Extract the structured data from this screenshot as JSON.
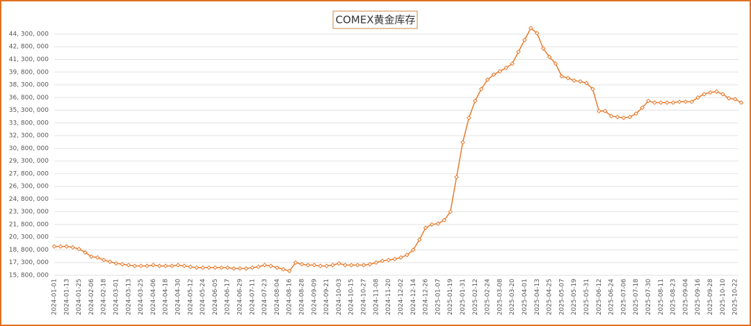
{
  "chart_data": {
    "type": "line",
    "title": "COMEX黄金库存",
    "categories": [
      "2024-01-01",
      null,
      "2024-01-13",
      null,
      "2024-01-25",
      null,
      "2024-02-06",
      null,
      "2024-02-18",
      null,
      "2024-03-01",
      null,
      "2024-03-13",
      null,
      "2024-03-25",
      null,
      "2024-04-06",
      null,
      "2024-04-18",
      null,
      "2024-04-30",
      null,
      "2024-05-12",
      null,
      "2024-05-24",
      null,
      "2024-06-05",
      null,
      "2024-06-17",
      null,
      "2024-06-29",
      null,
      "2024-07-11",
      null,
      "2024-07-23",
      null,
      "2024-08-04",
      null,
      "2024-08-16",
      null,
      "2024-08-28",
      null,
      "2024-09-09",
      null,
      "2024-09-21",
      null,
      "2024-10-03",
      null,
      "2024-10-15",
      null,
      "2024-10-27",
      null,
      "2024-11-08",
      null,
      "2024-11-20",
      null,
      "2024-12-02",
      null,
      "2024-12-14",
      null,
      "2024-12-26",
      null,
      "2025-01-07",
      null,
      "2025-01-19",
      null,
      "2025-01-31",
      null,
      "2025-02-12",
      null,
      "2025-02-24",
      null,
      "2025-03-08",
      null,
      "2025-03-20",
      null,
      "2025-04-01",
      null,
      "2025-04-13",
      null,
      "2025-04-25",
      null,
      "2025-05-07",
      null,
      "2025-05-19",
      null,
      "2025-05-31",
      null,
      "2025-06-12",
      null,
      "2025-06-24",
      null,
      "2025-07-06",
      null,
      "2025-07-18",
      null,
      "2025-07-30",
      null,
      "2025-08-11",
      null,
      "2025-08-23",
      null,
      "2025-09-04",
      null,
      "2025-09-16",
      null,
      "2025-09-28",
      null,
      "2025-10-10",
      null,
      "2025-10-22",
      null
    ],
    "series": [
      {
        "name": "COMEX黄金库存",
        "color": "#e8792a",
        "values": [
          19200000,
          19200000,
          19200000,
          19100000,
          18900000,
          18500000,
          18000000,
          17900000,
          17600000,
          17400000,
          17200000,
          17100000,
          17000000,
          16900000,
          16900000,
          16900000,
          17000000,
          16900000,
          16900000,
          16900000,
          17000000,
          16900000,
          16800000,
          16700000,
          16700000,
          16700000,
          16700000,
          16700000,
          16700000,
          16600000,
          16600000,
          16600000,
          16700000,
          16800000,
          17000000,
          16900000,
          16700000,
          16500000,
          16300000,
          17300000,
          17100000,
          17000000,
          17000000,
          16900000,
          16900000,
          17000000,
          17200000,
          17000000,
          17000000,
          17000000,
          17000000,
          17100000,
          17300000,
          17500000,
          17600000,
          17700000,
          17900000,
          18200000,
          18800000,
          20000000,
          21400000,
          21800000,
          21900000,
          22300000,
          23300000,
          27400000,
          31500000,
          34400000,
          36400000,
          37800000,
          38900000,
          39500000,
          39900000,
          40300000,
          40800000,
          42200000,
          43600000,
          45000000,
          44400000,
          42600000,
          41600000,
          40800000,
          39300000,
          39100000,
          38800000,
          38700000,
          38500000,
          37800000,
          35200000,
          35200000,
          34600000,
          34500000,
          34400000,
          34500000,
          34900000,
          35600000,
          36400000,
          36200000,
          36200000,
          36200000,
          36200000,
          36300000,
          36300000,
          36300000,
          36800000,
          37200000,
          37400000,
          37500000,
          37200000,
          36700000,
          36600000,
          36200000
        ]
      }
    ],
    "ylim": [
      15800000,
      45800000
    ],
    "yticks": [
      {
        "value": 15800000,
        "label": "15, 800, 000"
      },
      {
        "value": 17300000,
        "label": "17, 300, 000"
      },
      {
        "value": 18800000,
        "label": "18, 800, 000"
      },
      {
        "value": 20300000,
        "label": "20, 300, 000"
      },
      {
        "value": 21800000,
        "label": "21, 800, 000"
      },
      {
        "value": 23300000,
        "label": "23, 300, 000"
      },
      {
        "value": 24800000,
        "label": "24, 800, 000"
      },
      {
        "value": 26300000,
        "label": "26, 300, 000"
      },
      {
        "value": 27800000,
        "label": "27, 800, 000"
      },
      {
        "value": 29300000,
        "label": "29, 300, 000"
      },
      {
        "value": 30800000,
        "label": "30, 800, 000"
      },
      {
        "value": 32300000,
        "label": "32, 300, 000"
      },
      {
        "value": 33800000,
        "label": "33, 800, 000"
      },
      {
        "value": 35300000,
        "label": "35, 300, 000"
      },
      {
        "value": 36800000,
        "label": "36, 800, 000"
      },
      {
        "value": 38300000,
        "label": "38, 300, 000"
      },
      {
        "value": 39800000,
        "label": "39, 800, 000"
      },
      {
        "value": 41300000,
        "label": "41, 300, 000"
      },
      {
        "value": 42800000,
        "label": "42, 800, 000"
      },
      {
        "value": 44300000,
        "label": "44, 300, 000"
      }
    ],
    "grid": true
  }
}
